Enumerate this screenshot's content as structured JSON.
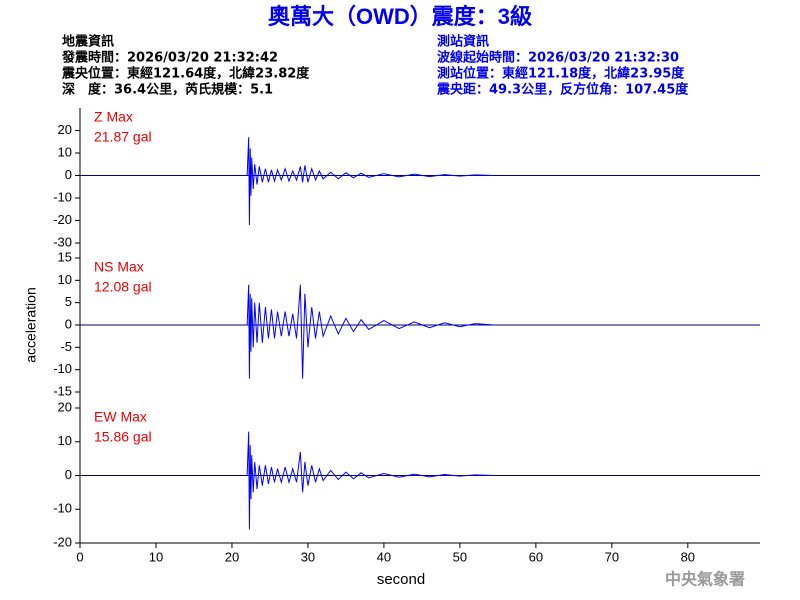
{
  "header": {
    "title": "奧萬大（OWD）震度：3級",
    "left": [
      "地震資訊",
      "發震時間：2026/03/20 21:32:42",
      "震央位置：東經121.64度，北緯23.82度",
      "深　度：36.4公里，芮氏規模：5.1"
    ],
    "right": [
      "測站資訊",
      "波線起始時間：2026/03/20 21:32:30",
      "測站位置：東經121.18度，北緯23.95度",
      "震央距：49.3公里，反方位角：107.45度"
    ]
  },
  "footer": "中央氣象署",
  "chart_data": [
    {
      "type": "line",
      "label": "Z Max",
      "max": "21.87 gal",
      "x": [
        22.0,
        22.2,
        22.3,
        22.4,
        22.5,
        22.6,
        22.8,
        23.0,
        23.3,
        23.6,
        24,
        24.4,
        24.8,
        25.2,
        25.6,
        26,
        26.5,
        27,
        27.5,
        28,
        28.5,
        29,
        29.3,
        29.6,
        30,
        30.5,
        31,
        31.5,
        32,
        33,
        34,
        35,
        36,
        37,
        38,
        40,
        42,
        44,
        46,
        48,
        50,
        52,
        54.5
      ],
      "series": [
        {
          "color": "#0000ff",
          "values": [
            0,
            17,
            -22,
            12,
            -9,
            8,
            -6,
            5,
            -4,
            4,
            -3,
            3,
            -3,
            2.5,
            -2.5,
            2.5,
            -2,
            3,
            -2.5,
            2,
            -2,
            4,
            -3,
            4.5,
            -3,
            3,
            -2,
            2,
            -1.5,
            1.5,
            -1.5,
            1.2,
            -1,
            1,
            -0.8,
            0.8,
            -0.6,
            0.6,
            -0.5,
            0.4,
            -0.3,
            0.3,
            0
          ]
        }
      ],
      "xlim": [
        0,
        89.5
      ],
      "ylim": [
        -30,
        30
      ],
      "yticks": [
        -30,
        -20,
        -10,
        0,
        10,
        20
      ]
    },
    {
      "type": "line",
      "label": "NS Max",
      "max": "12.08 gal",
      "ylabel": "acceleration",
      "x": [
        22.0,
        22.2,
        22.3,
        22.4,
        22.5,
        22.6,
        22.8,
        23.0,
        23.3,
        23.6,
        24,
        24.4,
        24.8,
        25.2,
        25.6,
        26,
        26.5,
        27,
        27.5,
        28,
        28.5,
        29,
        29.3,
        29.6,
        30,
        30.5,
        31,
        31.5,
        32,
        33,
        34,
        35,
        36,
        37,
        38,
        40,
        42,
        44,
        46,
        48,
        50,
        52,
        54.5
      ],
      "series": [
        {
          "color": "#0000ff",
          "values": [
            0,
            9,
            -12,
            7,
            -6,
            6,
            -5,
            5,
            -4,
            5,
            -4,
            4,
            -3,
            3.5,
            -3,
            3,
            -2.5,
            3,
            -2.5,
            2.5,
            -3,
            9,
            -12,
            7,
            -5,
            4,
            -3,
            3,
            -2.5,
            2,
            -2,
            1.5,
            -1.5,
            1.2,
            -1,
            1,
            -0.8,
            0.7,
            -0.6,
            0.5,
            -0.4,
            0.3,
            0
          ]
        }
      ],
      "xlim": [
        0,
        89.5
      ],
      "ylim": [
        -15,
        15
      ],
      "yticks": [
        -15,
        -10,
        -5,
        0,
        5,
        10,
        15
      ]
    },
    {
      "type": "line",
      "label": "EW Max",
      "max": "15.86 gal",
      "xlabel": "second",
      "x": [
        22.0,
        22.2,
        22.3,
        22.4,
        22.5,
        22.6,
        22.8,
        23.0,
        23.3,
        23.6,
        24,
        24.4,
        24.8,
        25.2,
        25.6,
        26,
        26.5,
        27,
        27.5,
        28,
        28.5,
        29,
        29.3,
        29.6,
        30,
        30.5,
        31,
        31.5,
        32,
        33,
        34,
        35,
        36,
        37,
        38,
        40,
        42,
        44,
        46,
        48,
        50,
        52,
        54.5
      ],
      "series": [
        {
          "color": "#0000ff",
          "values": [
            0,
            13,
            -16,
            9,
            -7,
            6,
            -5,
            4,
            -4,
            3,
            -3,
            3,
            -2.5,
            2.5,
            -2,
            2,
            -2,
            2.5,
            -2,
            2,
            -2,
            7,
            -5,
            4,
            -3,
            3,
            -2,
            2,
            -1.5,
            1.5,
            -1.2,
            1,
            -1,
            0.8,
            -0.7,
            0.6,
            -0.5,
            0.4,
            -0.4,
            0.3,
            -0.2,
            0.2,
            0
          ]
        }
      ],
      "xlim": [
        0,
        89.5
      ],
      "ylim": [
        -20,
        20
      ],
      "yticks": [
        -20,
        -10,
        0,
        10,
        20
      ],
      "xticks": [
        0,
        10,
        20,
        30,
        40,
        50,
        60,
        70,
        80
      ]
    }
  ]
}
